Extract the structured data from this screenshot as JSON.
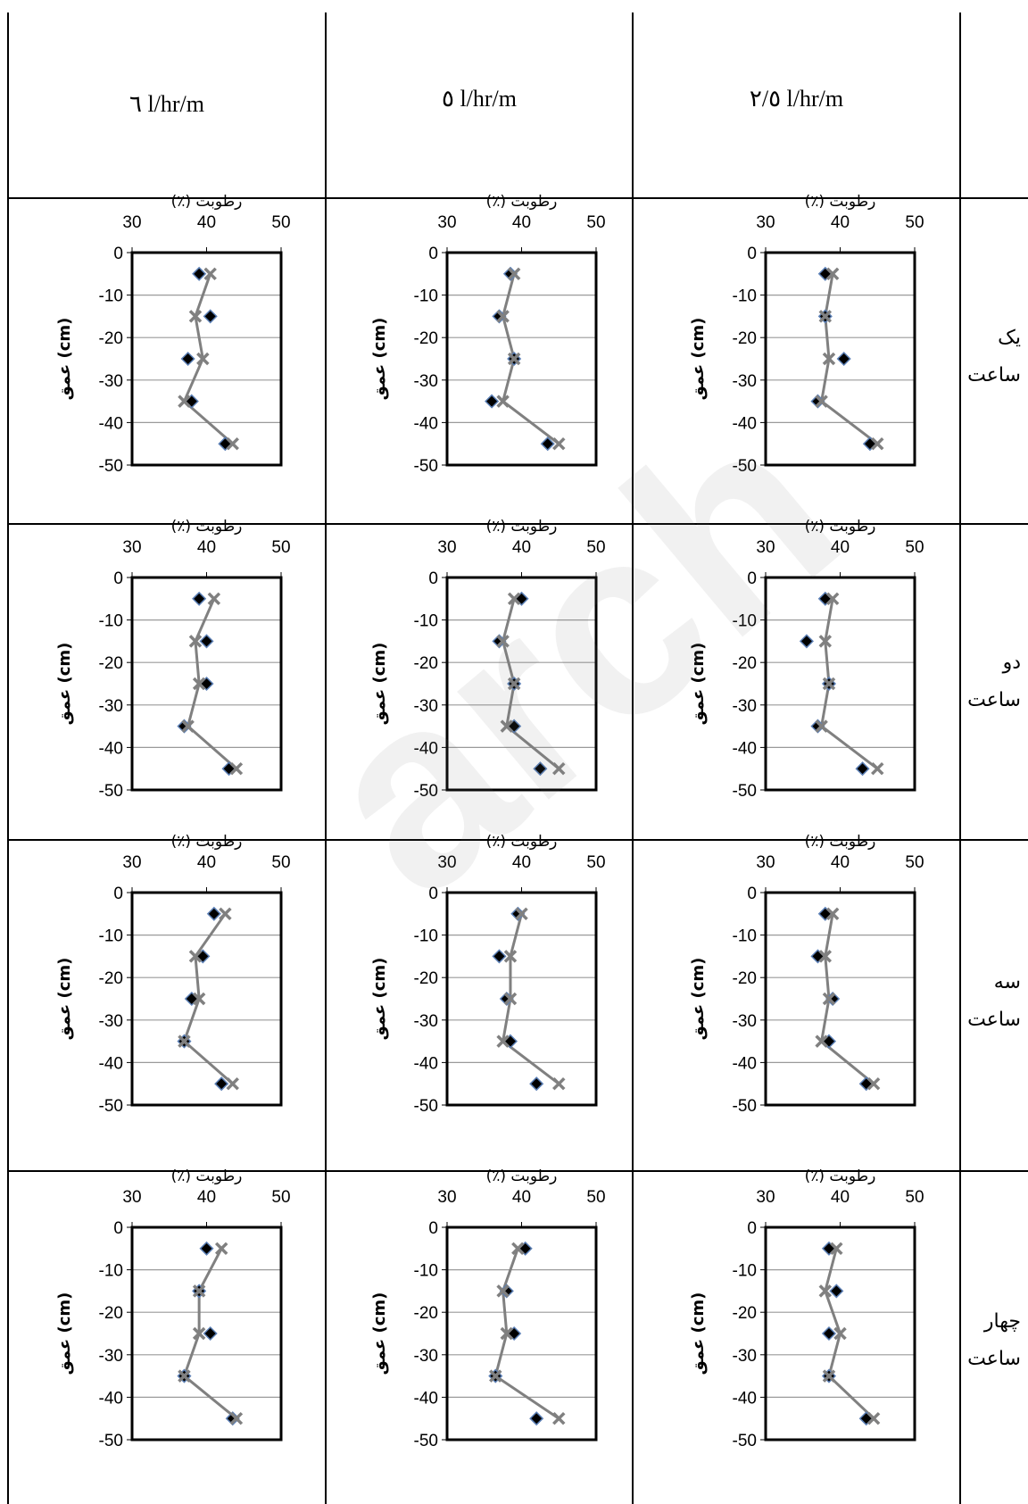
{
  "headers": {
    "col1": "٦  l/hr/m",
    "col2": "٥   l/hr/m",
    "col3": "٢/٥   l/hr/m"
  },
  "row_labels": [
    {
      "line1": "یک",
      "line2": "ساعت"
    },
    {
      "line1": "دو",
      "line2": "ساعت"
    },
    {
      "line1": "سه",
      "line2": "ساعت"
    },
    {
      "line1": "چهار",
      "line2": "ساعت"
    }
  ],
  "watermark": "arch",
  "colors": {
    "diamond": "#000000",
    "diamond_edge": "#5b7fb5",
    "cross_line": "#808080"
  },
  "chart_common": {
    "x_ticks": [
      "30",
      "40",
      "50"
    ],
    "y_ticks": [
      "0",
      "-10",
      "-20",
      "-30",
      "-40",
      "-50"
    ],
    "x_label": "رطوبت (٪)",
    "y_label": "عمق (cm)",
    "xlim": [
      30,
      50
    ],
    "ylim": [
      -50,
      0
    ]
  },
  "chart_data": [
    {
      "type": "scatter",
      "row": 0,
      "col": 0,
      "depth": [
        -5,
        -15,
        -25,
        -35,
        -45
      ],
      "series": [
        {
          "marker": "diamond",
          "values": [
            39,
            40.5,
            37.5,
            38,
            42.5
          ]
        },
        {
          "marker": "cross-line",
          "values": [
            40.5,
            38.5,
            39.5,
            37,
            43.5
          ]
        }
      ]
    },
    {
      "type": "scatter",
      "row": 0,
      "col": 1,
      "depth": [
        -5,
        -15,
        -25,
        -35,
        -45
      ],
      "series": [
        {
          "marker": "diamond",
          "values": [
            38.5,
            37,
            39,
            36,
            43.5
          ]
        },
        {
          "marker": "cross-line",
          "values": [
            39,
            37.5,
            39,
            37.5,
            45
          ]
        }
      ]
    },
    {
      "type": "scatter",
      "row": 0,
      "col": 2,
      "depth": [
        -5,
        -15,
        -25,
        -35,
        -45
      ],
      "series": [
        {
          "marker": "diamond",
          "values": [
            38,
            38,
            40.5,
            37,
            44
          ]
        },
        {
          "marker": "cross-line",
          "values": [
            39,
            38,
            38.5,
            37.5,
            45
          ]
        }
      ]
    },
    {
      "type": "scatter",
      "row": 1,
      "col": 0,
      "depth": [
        -5,
        -15,
        -25,
        -35,
        -45
      ],
      "series": [
        {
          "marker": "diamond",
          "values": [
            39,
            40,
            40,
            37,
            43
          ]
        },
        {
          "marker": "cross-line",
          "values": [
            41,
            38.5,
            39,
            37.5,
            44
          ]
        }
      ]
    },
    {
      "type": "scatter",
      "row": 1,
      "col": 1,
      "depth": [
        -5,
        -15,
        -25,
        -35,
        -45
      ],
      "series": [
        {
          "marker": "diamond",
          "values": [
            40,
            37,
            39,
            39,
            42.5
          ]
        },
        {
          "marker": "cross-line",
          "values": [
            39,
            37.5,
            39,
            38,
            45
          ]
        }
      ]
    },
    {
      "type": "scatter",
      "row": 1,
      "col": 2,
      "depth": [
        -5,
        -15,
        -25,
        -35,
        -45
      ],
      "series": [
        {
          "marker": "diamond",
          "values": [
            38,
            35.5,
            38.5,
            37,
            43
          ]
        },
        {
          "marker": "cross-line",
          "values": [
            39,
            38,
            38.5,
            37.5,
            45
          ]
        }
      ]
    },
    {
      "type": "scatter",
      "row": 2,
      "col": 0,
      "depth": [
        -5,
        -15,
        -25,
        -35,
        -45
      ],
      "series": [
        {
          "marker": "diamond",
          "values": [
            41,
            39.5,
            38,
            37,
            42
          ]
        },
        {
          "marker": "cross-line",
          "values": [
            42.5,
            38.5,
            39,
            37,
            43.5
          ]
        }
      ]
    },
    {
      "type": "scatter",
      "row": 2,
      "col": 1,
      "depth": [
        -5,
        -15,
        -25,
        -35,
        -45
      ],
      "series": [
        {
          "marker": "diamond",
          "values": [
            39.5,
            37,
            38,
            38.5,
            42
          ]
        },
        {
          "marker": "cross-line",
          "values": [
            40,
            38.5,
            38.5,
            37.5,
            45
          ]
        }
      ]
    },
    {
      "type": "scatter",
      "row": 2,
      "col": 2,
      "depth": [
        -5,
        -15,
        -25,
        -35,
        -45
      ],
      "series": [
        {
          "marker": "diamond",
          "values": [
            38,
            37,
            39,
            38.5,
            43.5
          ]
        },
        {
          "marker": "cross-line",
          "values": [
            39,
            38,
            38.5,
            37.5,
            44.5
          ]
        }
      ]
    },
    {
      "type": "scatter",
      "row": 3,
      "col": 0,
      "depth": [
        -5,
        -15,
        -25,
        -35,
        -45
      ],
      "series": [
        {
          "marker": "diamond",
          "values": [
            40,
            39,
            40.5,
            37,
            43.5
          ]
        },
        {
          "marker": "cross-line",
          "values": [
            42,
            39,
            39,
            37,
            44
          ]
        }
      ]
    },
    {
      "type": "scatter",
      "row": 3,
      "col": 1,
      "depth": [
        -5,
        -15,
        -25,
        -35,
        -45
      ],
      "series": [
        {
          "marker": "diamond",
          "values": [
            40.5,
            38,
            39,
            36.5,
            42
          ]
        },
        {
          "marker": "cross-line",
          "values": [
            39.5,
            37.5,
            38,
            36.5,
            45
          ]
        }
      ]
    },
    {
      "type": "scatter",
      "row": 3,
      "col": 2,
      "depth": [
        -5,
        -15,
        -25,
        -35,
        -45
      ],
      "series": [
        {
          "marker": "diamond",
          "values": [
            38.5,
            39.5,
            38.5,
            38.5,
            43.5
          ]
        },
        {
          "marker": "cross-line",
          "values": [
            39.5,
            38,
            40,
            38.5,
            44.5
          ]
        }
      ]
    }
  ]
}
